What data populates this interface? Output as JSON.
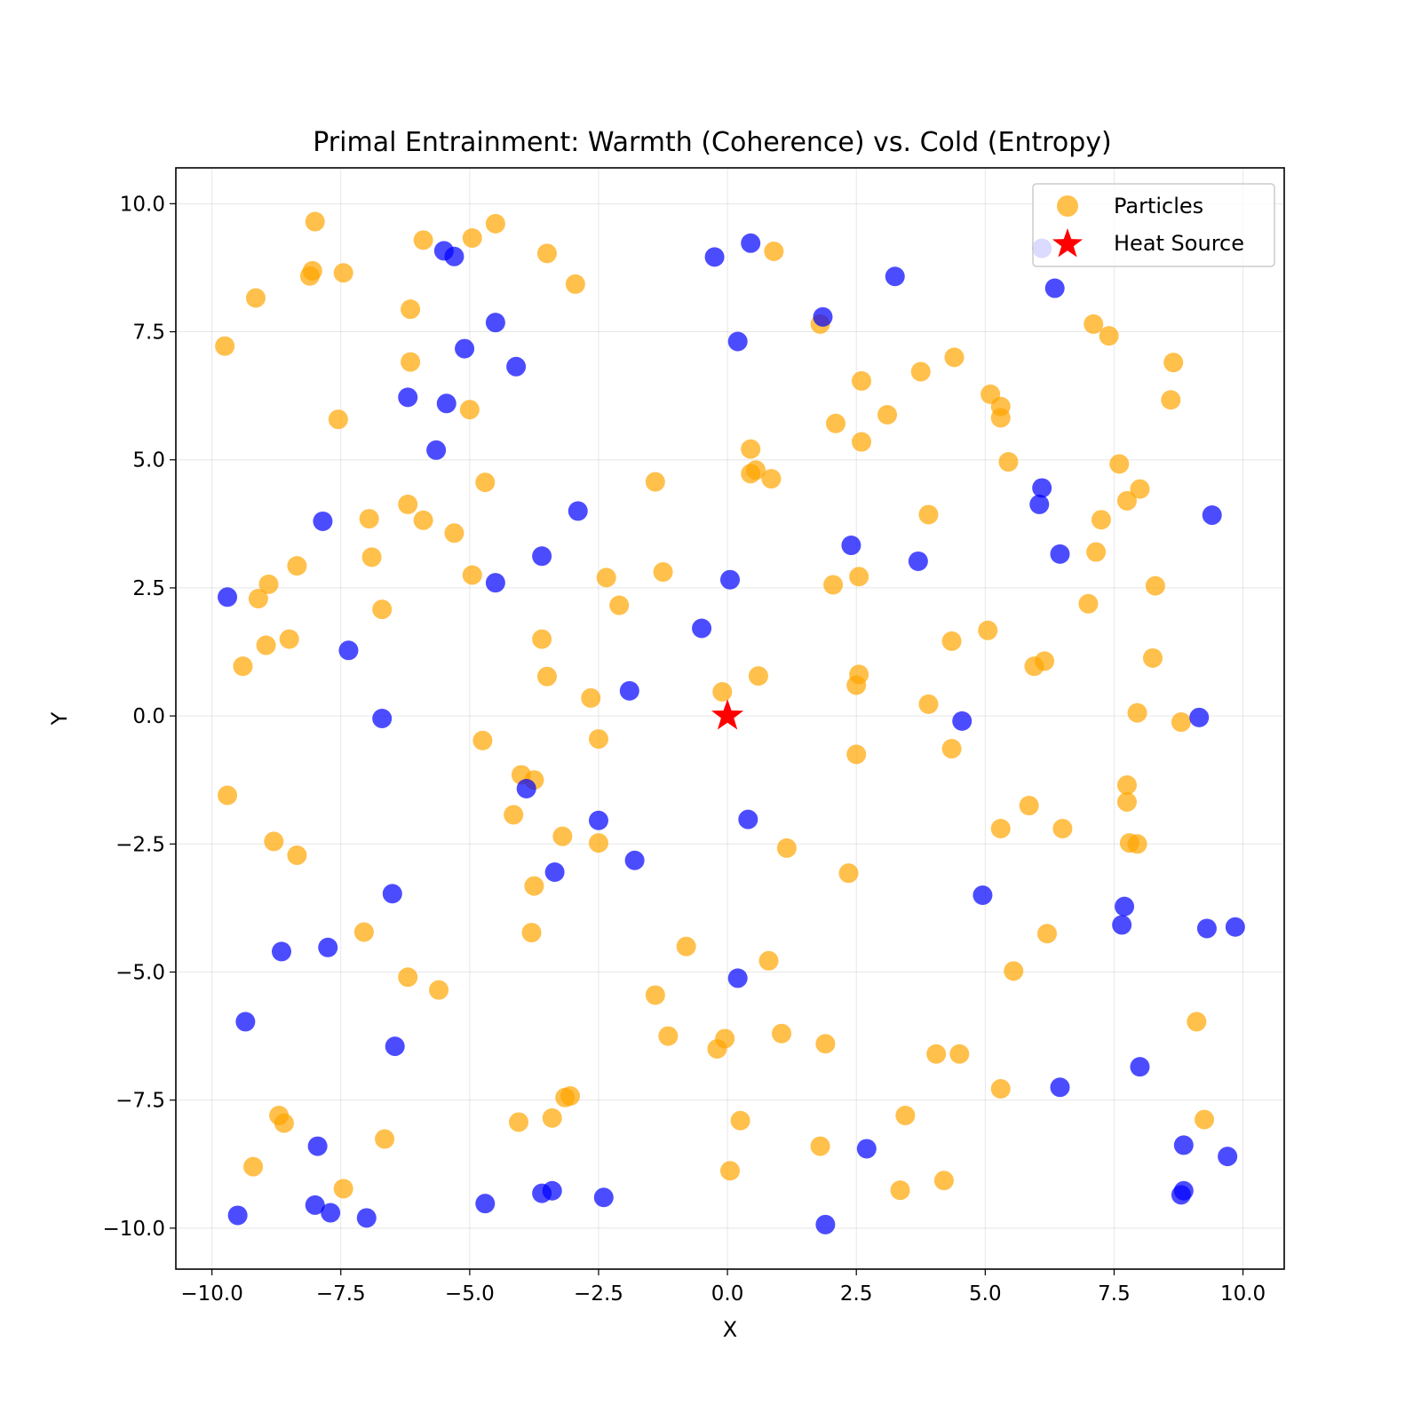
{
  "chart_data": {
    "type": "scatter",
    "title": "Primal Entrainment: Warmth (Coherence) vs. Cold (Entropy)",
    "xlabel": "X",
    "ylabel": "Y",
    "xlim": [
      -10.7,
      10.8
    ],
    "ylim": [
      -10.8,
      10.7
    ],
    "grid": true,
    "legend_position": "top-right",
    "x_ticks": [
      -10.0,
      -7.5,
      -5.0,
      -2.5,
      0.0,
      2.5,
      5.0,
      7.5,
      10.0
    ],
    "y_ticks": [
      -10.0,
      -7.5,
      -5.0,
      -2.5,
      0.0,
      2.5,
      5.0,
      7.5,
      10.0
    ],
    "x_tick_labels": [
      "−10.0",
      "−7.5",
      "−5.0",
      "−2.5",
      "0.0",
      "2.5",
      "5.0",
      "7.5",
      "10.0"
    ],
    "y_tick_labels": [
      "−10.0",
      "−7.5",
      "−5.0",
      "−2.5",
      "0.0",
      "2.5",
      "5.0",
      "7.5",
      "10.0"
    ],
    "legend": [
      {
        "label": "Particles",
        "marker": "circle",
        "color": "#FFA500"
      },
      {
        "label": "Heat Source",
        "marker": "star",
        "color": "#FF0000"
      }
    ],
    "series": [
      {
        "name": "Particles",
        "color": "#FFA500",
        "points": [
          [
            -9.75,
            7.22
          ],
          [
            -9.15,
            8.16
          ],
          [
            -8.1,
            8.59
          ],
          [
            -8.05,
            8.69
          ],
          [
            -8.0,
            9.65
          ],
          [
            -7.45,
            8.65
          ],
          [
            -7.55,
            5.79
          ],
          [
            -6.15,
            7.94
          ],
          [
            -6.15,
            6.91
          ],
          [
            -5.9,
            9.29
          ],
          [
            -4.95,
            9.33
          ],
          [
            -4.5,
            9.61
          ],
          [
            -3.5,
            9.03
          ],
          [
            -2.95,
            8.43
          ],
          [
            -5.0,
            5.98
          ],
          [
            -4.7,
            4.56
          ],
          [
            -6.2,
            4.13
          ],
          [
            -5.9,
            3.82
          ],
          [
            -5.3,
            3.57
          ],
          [
            -4.95,
            2.75
          ],
          [
            -6.95,
            3.85
          ],
          [
            -6.9,
            3.1
          ],
          [
            -8.35,
            2.93
          ],
          [
            -8.9,
            2.57
          ],
          [
            -9.1,
            2.29
          ],
          [
            -6.7,
            2.08
          ],
          [
            -8.5,
            1.5
          ],
          [
            -8.95,
            1.38
          ],
          [
            -9.4,
            0.97
          ],
          [
            -3.6,
            1.5
          ],
          [
            -3.5,
            0.77
          ],
          [
            -2.65,
            0.35
          ],
          [
            -2.5,
            -0.45
          ],
          [
            -4.75,
            -0.48
          ],
          [
            -4.0,
            -1.15
          ],
          [
            -3.75,
            -1.25
          ],
          [
            -4.15,
            -1.93
          ],
          [
            -1.4,
            4.57
          ],
          [
            -1.25,
            2.81
          ],
          [
            -2.35,
            2.7
          ],
          [
            -2.1,
            2.16
          ],
          [
            -9.7,
            -1.55
          ],
          [
            -8.8,
            -2.45
          ],
          [
            -8.35,
            -2.72
          ],
          [
            -3.2,
            -2.35
          ],
          [
            -2.5,
            -2.48
          ],
          [
            -3.75,
            -3.32
          ],
          [
            -3.8,
            -4.23
          ],
          [
            -7.05,
            -4.22
          ],
          [
            -6.2,
            -5.1
          ],
          [
            -5.6,
            -5.35
          ],
          [
            -8.7,
            -7.8
          ],
          [
            -8.6,
            -7.95
          ],
          [
            -9.2,
            -8.8
          ],
          [
            -7.45,
            -9.23
          ],
          [
            -6.65,
            -8.26
          ],
          [
            -4.05,
            -7.93
          ],
          [
            -3.4,
            -7.85
          ],
          [
            -3.15,
            -7.45
          ],
          [
            -3.05,
            -7.42
          ],
          [
            -1.4,
            -5.45
          ],
          [
            -0.8,
            -4.5
          ],
          [
            -1.15,
            -6.25
          ],
          [
            -0.2,
            -6.5
          ],
          [
            -0.05,
            -6.3
          ],
          [
            0.25,
            -7.9
          ],
          [
            0.05,
            -8.88
          ],
          [
            0.9,
            9.07
          ],
          [
            1.8,
            7.65
          ],
          [
            0.45,
            5.21
          ],
          [
            0.45,
            4.73
          ],
          [
            0.55,
            4.8
          ],
          [
            0.85,
            4.63
          ],
          [
            2.6,
            6.54
          ],
          [
            2.1,
            5.71
          ],
          [
            2.6,
            5.35
          ],
          [
            3.1,
            5.88
          ],
          [
            3.75,
            6.72
          ],
          [
            4.4,
            7.0
          ],
          [
            5.1,
            6.28
          ],
          [
            5.3,
            6.04
          ],
          [
            5.3,
            5.82
          ],
          [
            5.45,
            4.96
          ],
          [
            3.9,
            3.93
          ],
          [
            2.05,
            2.56
          ],
          [
            2.55,
            2.72
          ],
          [
            -0.1,
            0.47
          ],
          [
            0.6,
            0.78
          ],
          [
            2.55,
            0.81
          ],
          [
            2.5,
            0.6
          ],
          [
            4.35,
            1.46
          ],
          [
            5.05,
            1.67
          ],
          [
            3.9,
            0.23
          ],
          [
            4.35,
            -0.64
          ],
          [
            2.5,
            -0.75
          ],
          [
            1.15,
            -2.58
          ],
          [
            2.35,
            -3.07
          ],
          [
            0.8,
            -4.78
          ],
          [
            1.05,
            -6.2
          ],
          [
            1.9,
            -6.4
          ],
          [
            4.05,
            -6.6
          ],
          [
            4.5,
            -6.6
          ],
          [
            5.3,
            -7.28
          ],
          [
            3.45,
            -7.8
          ],
          [
            1.8,
            -8.4
          ],
          [
            3.35,
            -9.26
          ],
          [
            4.2,
            -9.07
          ],
          [
            5.3,
            -2.2
          ],
          [
            5.85,
            -1.75
          ],
          [
            6.5,
            -2.2
          ],
          [
            6.2,
            -4.25
          ],
          [
            5.55,
            -4.98
          ],
          [
            7.1,
            7.65
          ],
          [
            7.4,
            7.42
          ],
          [
            8.65,
            6.9
          ],
          [
            8.6,
            6.17
          ],
          [
            7.6,
            4.92
          ],
          [
            7.75,
            4.2
          ],
          [
            8.0,
            4.43
          ],
          [
            7.25,
            3.83
          ],
          [
            7.15,
            3.2
          ],
          [
            8.3,
            2.54
          ],
          [
            7.0,
            2.19
          ],
          [
            5.95,
            0.97
          ],
          [
            6.15,
            1.07
          ],
          [
            8.25,
            1.13
          ],
          [
            7.95,
            0.06
          ],
          [
            8.8,
            -0.12
          ],
          [
            7.75,
            -1.35
          ],
          [
            7.75,
            -1.68
          ],
          [
            7.8,
            -2.48
          ],
          [
            7.95,
            -2.5
          ],
          [
            9.1,
            -5.97
          ],
          [
            9.25,
            -7.88
          ]
        ]
      },
      {
        "name": "",
        "color": "#0000FF",
        "points": [
          [
            -5.5,
            9.08
          ],
          [
            -5.3,
            8.97
          ],
          [
            -4.5,
            7.68
          ],
          [
            -5.1,
            7.17
          ],
          [
            -4.1,
            6.82
          ],
          [
            -6.2,
            6.22
          ],
          [
            -5.45,
            6.1
          ],
          [
            -5.65,
            5.19
          ],
          [
            -7.85,
            3.8
          ],
          [
            -2.9,
            4.0
          ],
          [
            -3.6,
            3.12
          ],
          [
            -4.5,
            2.6
          ],
          [
            -9.7,
            2.32
          ],
          [
            -7.35,
            1.28
          ],
          [
            -6.7,
            -0.05
          ],
          [
            -1.9,
            0.49
          ],
          [
            -0.5,
            1.71
          ],
          [
            0.05,
            2.66
          ],
          [
            -0.25,
            8.96
          ],
          [
            0.45,
            9.23
          ],
          [
            0.2,
            7.31
          ],
          [
            1.85,
            7.79
          ],
          [
            3.25,
            8.58
          ],
          [
            6.1,
            9.13
          ],
          [
            6.35,
            8.35
          ],
          [
            2.4,
            3.33
          ],
          [
            3.7,
            3.02
          ],
          [
            6.1,
            4.45
          ],
          [
            6.05,
            4.13
          ],
          [
            6.45,
            3.16
          ],
          [
            9.4,
            3.92
          ],
          [
            4.55,
            -0.1
          ],
          [
            9.15,
            -0.03
          ],
          [
            -3.9,
            -1.42
          ],
          [
            -2.5,
            -2.04
          ],
          [
            0.4,
            -2.02
          ],
          [
            -3.35,
            -3.05
          ],
          [
            -1.8,
            -2.82
          ],
          [
            -6.5,
            -3.47
          ],
          [
            -8.65,
            -4.6
          ],
          [
            -7.75,
            -4.52
          ],
          [
            -9.35,
            -5.97
          ],
          [
            -6.45,
            -6.45
          ],
          [
            0.2,
            -5.12
          ],
          [
            4.95,
            -3.5
          ],
          [
            7.7,
            -3.72
          ],
          [
            7.65,
            -4.08
          ],
          [
            9.3,
            -4.15
          ],
          [
            9.85,
            -4.12
          ],
          [
            8.0,
            -6.85
          ],
          [
            6.45,
            -7.25
          ],
          [
            2.7,
            -8.45
          ],
          [
            1.9,
            -9.93
          ],
          [
            8.85,
            -8.38
          ],
          [
            9.7,
            -8.6
          ],
          [
            8.85,
            -9.27
          ],
          [
            8.8,
            -9.35
          ],
          [
            -7.95,
            -8.4
          ],
          [
            -8.0,
            -9.55
          ],
          [
            -7.7,
            -9.7
          ],
          [
            -7.0,
            -9.8
          ],
          [
            -9.5,
            -9.75
          ],
          [
            -4.7,
            -9.52
          ],
          [
            -3.6,
            -9.32
          ],
          [
            -3.4,
            -9.27
          ],
          [
            -2.4,
            -9.4
          ]
        ]
      },
      {
        "name": "Heat Source",
        "color": "#FF0000",
        "marker": "star",
        "points": [
          [
            0.0,
            0.0
          ]
        ]
      }
    ]
  }
}
